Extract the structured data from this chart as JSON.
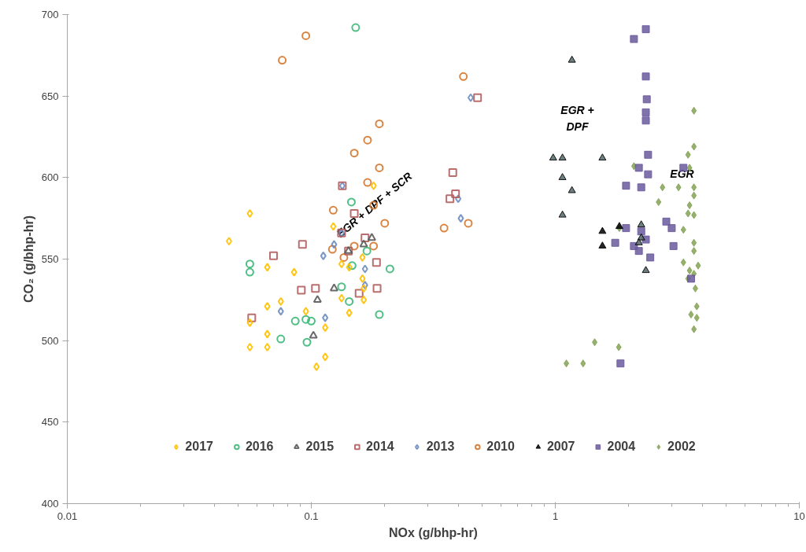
{
  "chart_data": {
    "type": "scatter",
    "xlabel": "NOx (g/bhp-hr)",
    "ylabel": "CO₂ (g/bhp-hr)",
    "log": "x",
    "xlim": [
      0.01,
      10
    ],
    "ylim": [
      400,
      700
    ],
    "xticks": [
      0.01,
      0.1,
      1,
      10
    ],
    "yticks": [
      400,
      450,
      500,
      550,
      600,
      650,
      700
    ],
    "grid": false,
    "legend": "bottom",
    "annotations": [
      "EGR + DPF + SCR",
      "EGR +\nDPF",
      "EGR"
    ],
    "series": [
      {
        "name": "2017",
        "color": "#ffc000",
        "marker": "diamond",
        "x": [
          0.056,
          0.046,
          0.066,
          0.085,
          0.123,
          0.075,
          0.066,
          0.095,
          0.114,
          0.066,
          0.066,
          0.056,
          0.056,
          0.114,
          0.105,
          0.133,
          0.143,
          0.162,
          0.162,
          0.133,
          0.164,
          0.143,
          0.18,
          0.164
        ],
        "values": [
          578,
          561,
          545,
          542,
          570,
          524,
          521,
          518,
          508,
          504,
          496,
          496,
          511,
          490,
          484,
          547,
          545,
          551,
          538,
          526,
          525,
          517,
          595,
          532
        ]
      },
      {
        "name": "2016",
        "color": "#3cb878",
        "marker": "circle",
        "x": [
          0.152,
          0.056,
          0.056,
          0.133,
          0.143,
          0.086,
          0.095,
          0.1,
          0.075,
          0.096,
          0.146,
          0.147,
          0.169,
          0.21,
          0.19
        ],
        "values": [
          692,
          547,
          542,
          533,
          524,
          512,
          513,
          512,
          501,
          499,
          585,
          546,
          555,
          544,
          516
        ]
      },
      {
        "name": "2015",
        "color": "#595959",
        "marker": "triangle",
        "x": [
          0.124,
          0.106,
          0.102,
          0.142,
          0.164,
          0.177
        ],
        "values": [
          532,
          525,
          503,
          555,
          559,
          563
        ]
      },
      {
        "name": "2014",
        "color": "#b35e5e",
        "marker": "square",
        "x": [
          0.15,
          0.133,
          0.092,
          0.07,
          0.091,
          0.104,
          0.157,
          0.057,
          0.142,
          0.185,
          0.186,
          0.166,
          0.134,
          0.38,
          0.39,
          0.37,
          0.48
        ],
        "values": [
          578,
          566,
          559,
          552,
          531,
          532,
          529,
          514,
          555,
          548,
          532,
          563,
          595,
          603,
          590,
          587,
          649
        ]
      },
      {
        "name": "2013",
        "color": "#6d8cc0",
        "marker": "diamond",
        "x": [
          0.45,
          0.4,
          0.41,
          0.134,
          0.124,
          0.112,
          0.166,
          0.075,
          0.114,
          0.166,
          0.133
        ],
        "values": [
          649,
          587,
          575,
          595,
          559,
          552,
          544,
          518,
          514,
          534,
          566
        ]
      },
      {
        "name": "2010",
        "color": "#d4782f",
        "marker": "circle",
        "x": [
          0.076,
          0.095,
          0.19,
          0.17,
          0.15,
          0.19,
          0.17,
          0.42,
          0.123,
          0.18,
          0.122,
          0.136,
          0.15,
          0.2,
          0.35,
          0.44,
          0.18
        ],
        "values": [
          672,
          687,
          633,
          623,
          615,
          606,
          597,
          662,
          580,
          583,
          556,
          551,
          558,
          572,
          569,
          572,
          558
        ]
      },
      {
        "name": "2007",
        "color": "#000000",
        "marker": "triangle",
        "colors": [
          "#000000",
          "#000000",
          "#000000",
          "#54676b",
          "#54676b",
          "#54676b",
          "#54676b",
          "#54676b",
          "#54676b",
          "#54676b",
          "#54676b",
          "#54676b",
          "#54676b",
          "#54676b"
        ],
        "x": [
          1.56,
          1.56,
          1.83,
          1.17,
          0.98,
          1.07,
          1.56,
          1.07,
          1.17,
          1.07,
          2.25,
          2.25,
          2.2,
          2.35
        ],
        "values": [
          567,
          558,
          570,
          672,
          612,
          612,
          612,
          600,
          592,
          577,
          571,
          563,
          560,
          543
        ]
      },
      {
        "name": "2004",
        "color": "#6a5a9c",
        "marker": "square",
        "x": [
          2.35,
          2.1,
          2.35,
          2.37,
          2.35,
          2.35,
          2.4,
          2.2,
          2.4,
          3.35,
          1.95,
          2.25,
          1.95,
          2.25,
          2.35,
          1.76,
          2.1,
          2.2,
          2.45,
          2.85,
          3.0,
          3.05,
          3.6,
          1.85
        ],
        "values": [
          691,
          685,
          662,
          648,
          640,
          635,
          614,
          606,
          602,
          606,
          595,
          594,
          569,
          567,
          562,
          560,
          558,
          555,
          551,
          573,
          569,
          558,
          538,
          486
        ]
      },
      {
        "name": "2002",
        "color": "#84a254",
        "marker": "diamond",
        "x": [
          3.7,
          3.7,
          3.5,
          3.55,
          2.1,
          2.75,
          3.2,
          3.7,
          3.7,
          2.65,
          3.55,
          3.7,
          3.5,
          3.35,
          3.7,
          3.7,
          3.35,
          3.55,
          3.85,
          3.7,
          3.5,
          3.75,
          1.83,
          3.8,
          3.6,
          3.8,
          3.7,
          1.45,
          1.82,
          1.11,
          1.3
        ],
        "values": [
          641,
          619,
          614,
          606,
          607,
          594,
          594,
          594,
          589,
          585,
          583,
          577,
          578,
          568,
          560,
          555,
          548,
          543,
          546,
          541,
          538,
          532,
          569,
          521,
          516,
          514,
          507,
          499,
          496,
          486,
          486
        ]
      }
    ]
  }
}
